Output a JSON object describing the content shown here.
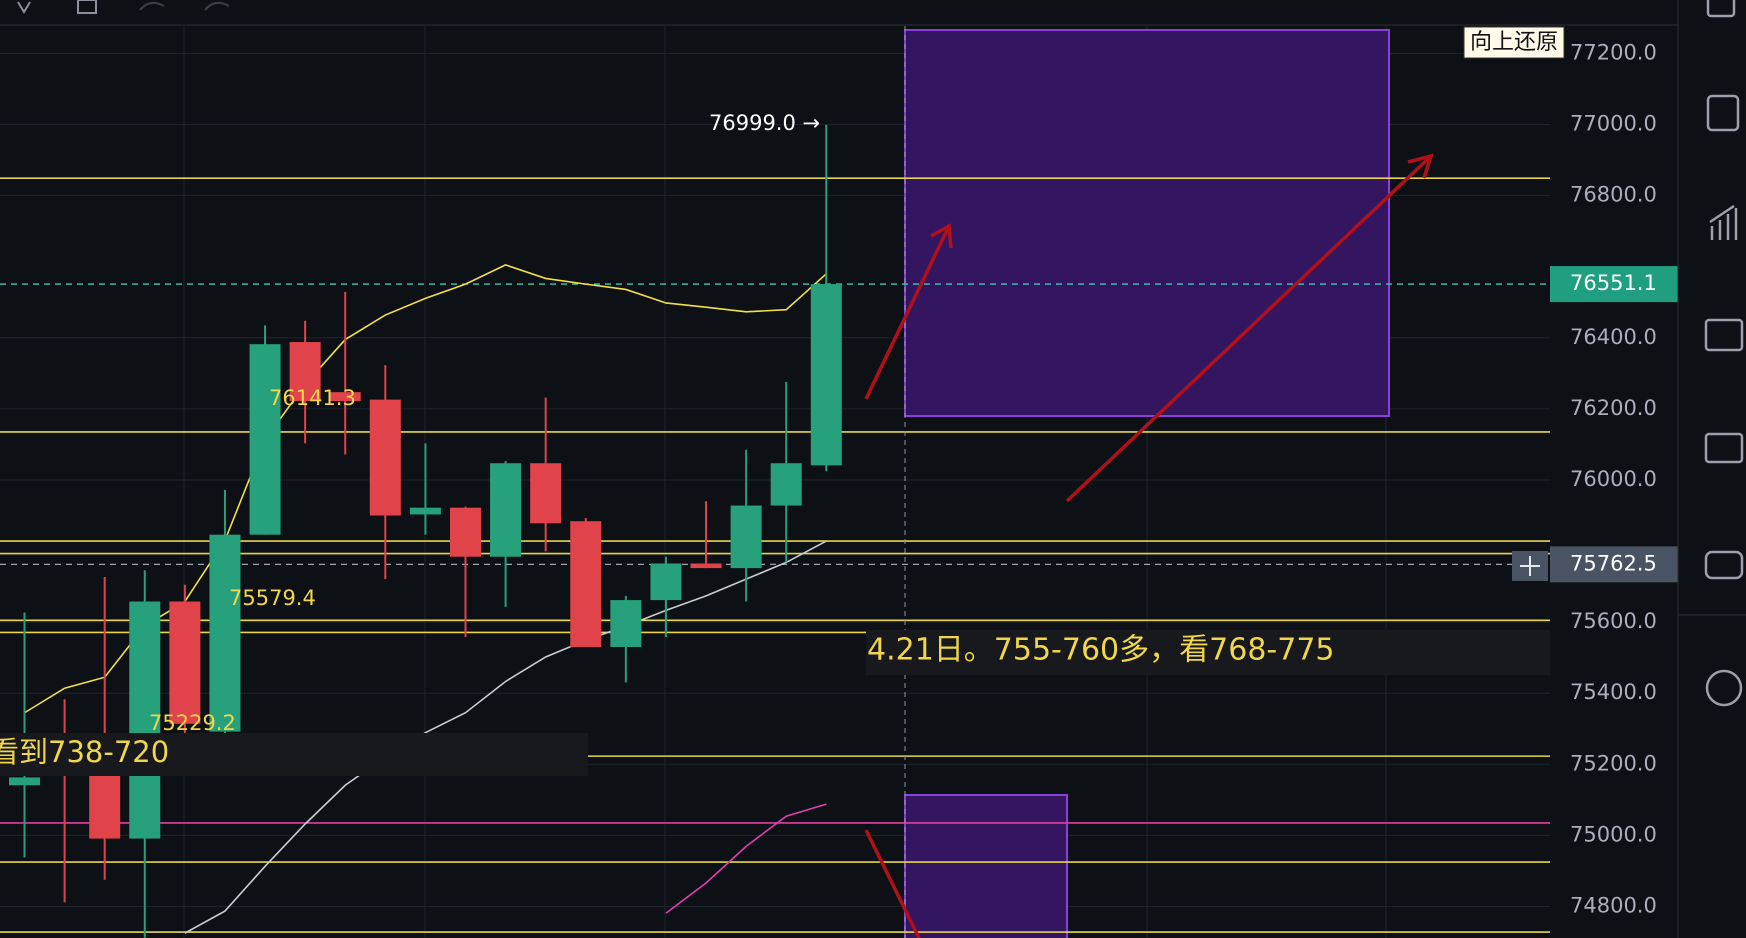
{
  "chart_data": {
    "type": "candlestick",
    "ylim": [
      74700,
      77300
    ],
    "yticks": [
      {
        "value": 77200,
        "label": "77200.0"
      },
      {
        "value": 77000,
        "label": "77000.0"
      },
      {
        "value": 76800,
        "label": "76800.0"
      },
      {
        "value": 76400,
        "label": "76400.0"
      },
      {
        "value": 76200,
        "label": "76200.0"
      },
      {
        "value": 76000,
        "label": "76000.0"
      },
      {
        "value": 75600,
        "label": "75600.0"
      },
      {
        "value": 75400,
        "label": "75400.0"
      },
      {
        "value": 75200,
        "label": "75200.0"
      },
      {
        "value": 75000,
        "label": "75000.0"
      },
      {
        "value": 74800,
        "label": "74800.0"
      }
    ],
    "grid": true,
    "up_color": "#26a17b",
    "down_color": "#e0434a",
    "open": [
      75141,
      75220,
      75173,
      74991,
      75658,
      75292,
      75846,
      76388,
      76247,
      76226,
      75903,
      75922,
      75784,
      76047,
      75884,
      75530,
      75662,
      75765,
      75752,
      75928,
      76041
    ],
    "high": [
      75627,
      75383,
      75727,
      75746,
      75705,
      75972,
      76435,
      76448,
      76529,
      76323,
      76103,
      75925,
      76053,
      76232,
      75893,
      75674,
      75784,
      75940,
      76085,
      76276,
      76999
    ],
    "low": [
      74938,
      74812,
      74875,
      74712,
      75251,
      75245,
      75846,
      76103,
      76072,
      75721,
      75846,
      75558,
      75643,
      75799,
      75530,
      75430,
      75558,
      75752,
      75658,
      75768,
      76025
    ],
    "close": [
      75163,
      75220,
      74991,
      75658,
      75314,
      75846,
      76382,
      76222,
      76222,
      75900,
      75922,
      75784,
      76047,
      75878,
      75530,
      75662,
      75765,
      75752,
      75928,
      76047,
      76551.1
    ],
    "series": [
      {
        "color": "#f2e04b",
        "values": [
          75345,
          75414,
          75445,
          75589,
          75658,
          75830,
          76113,
          76269,
          76395,
          76464,
          76511,
          76551,
          76605,
          76567,
          76551,
          76536,
          76498,
          76486,
          76473,
          76479,
          76580
        ]
      },
      {
        "color": "#c9cdd2",
        "values": [
          null,
          null,
          null,
          null,
          74725,
          74787,
          74913,
          75032,
          75141,
          75220,
          75289,
          75345,
          75433,
          75502,
          75549,
          75589,
          75633,
          75674,
          75721,
          75768,
          75828
        ]
      },
      {
        "color": "#e040b0",
        "values": [
          null,
          null,
          null,
          null,
          null,
          null,
          null,
          null,
          null,
          null,
          null,
          null,
          null,
          null,
          null,
          null,
          74781,
          74866,
          74969,
          75054,
          75088
        ]
      }
    ],
    "levels": [
      {
        "value": 76849,
        "color": "#e8d44d"
      },
      {
        "value": 76135,
        "color": "#e8d44d"
      },
      {
        "value": 75828,
        "color": "#e8d44d"
      },
      {
        "value": 75793,
        "color": "#e8d44d"
      },
      {
        "value": 75605,
        "color": "#e8d44d"
      },
      {
        "value": 75571,
        "color": "#e8d44d"
      },
      {
        "value": 75223,
        "color": "#e8d44d"
      },
      {
        "value": 74925,
        "color": "#e8d44d"
      },
      {
        "value": 74728,
        "color": "#e8d44d"
      },
      {
        "value": 75035,
        "color": "#e040a0"
      }
    ],
    "price_tags": [
      {
        "value": 76551.1,
        "color": "#1f9e80",
        "line": "#3fc9b0"
      },
      {
        "value": 75762.5,
        "color": "#4a5363",
        "line": "#9aa3ae"
      }
    ],
    "annotations": {
      "high": "76999.0 →",
      "a1": "76141.3",
      "a2": "75579.4",
      "a3": "75229.2",
      "note_left": "看到738-720",
      "note_right": "4.21日。755-760多，看768-775"
    },
    "button": "向上还原"
  }
}
